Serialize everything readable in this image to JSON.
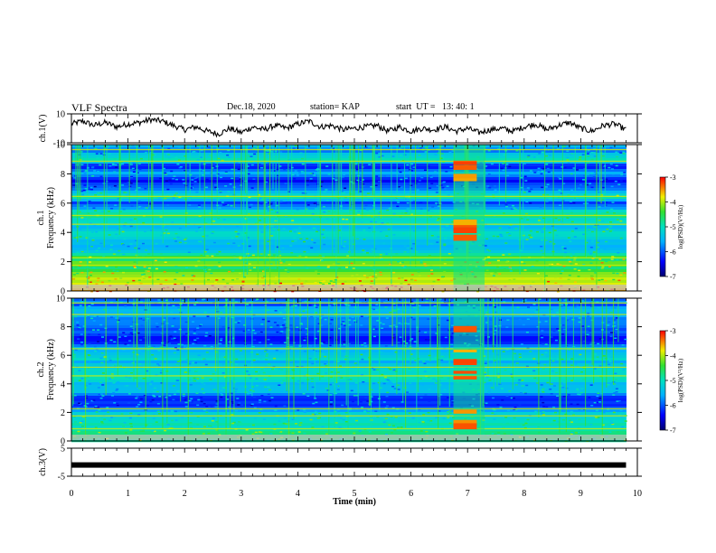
{
  "header": {
    "title": "VLF Spectra",
    "date": "Dec.18, 2020",
    "station": "station= KAP",
    "start": "start  UT =   13: 40: 1"
  },
  "chart_data": [
    {
      "type": "line",
      "panel": "ch1-waveform",
      "ylabel": "ch.1(V)",
      "ylim": [
        -10,
        10
      ],
      "yticks": [
        "10",
        "-10"
      ],
      "x": [
        0.0,
        0.2,
        0.4,
        0.6,
        0.8,
        1.0,
        1.2,
        1.4,
        1.6,
        1.8,
        2.0,
        2.2,
        2.4,
        2.6,
        2.8,
        3.0,
        3.2,
        3.4,
        3.6,
        3.8,
        4.0,
        4.2,
        4.4,
        4.6,
        4.8,
        5.0,
        5.2,
        5.4,
        5.6,
        5.8,
        6.0,
        6.2,
        6.4,
        6.6,
        6.8,
        7.0,
        7.2,
        7.4,
        7.6,
        7.8,
        8.0,
        8.2,
        8.4,
        8.6,
        8.8,
        9.0,
        9.2,
        9.4,
        9.6,
        9.8
      ],
      "values": [
        3,
        5,
        2,
        4,
        1,
        3,
        4,
        6,
        5,
        2,
        -1,
        1,
        -2,
        -4,
        0,
        -3,
        1,
        -1,
        2,
        0,
        3,
        5,
        1,
        2,
        -1,
        0,
        1,
        2,
        -2,
        1,
        -2,
        0,
        -1,
        1,
        -2,
        0,
        -3,
        -1,
        0,
        -2,
        1,
        3,
        -1,
        2,
        4,
        0,
        -2,
        2,
        3,
        -1
      ]
    },
    {
      "type": "heatmap",
      "panel": "ch1-spectrogram",
      "ylabel": "ch.1\nFrequency (kHz)",
      "xlim": [
        0,
        10
      ],
      "ylim": [
        0,
        10
      ],
      "yticks": [
        "0",
        "2",
        "4",
        "6",
        "8",
        "10"
      ],
      "colorbar": {
        "label": "log(PSD)(V²/Hz)",
        "range": [
          -7,
          -3
        ],
        "ticks": [
          "-3",
          "-4",
          "-5",
          "-6",
          "-7"
        ]
      },
      "burst": {
        "t_start": 6.75,
        "t_end": 7.3
      },
      "profile": [
        {
          "f": 0.5,
          "level": -3.8
        },
        {
          "f": 1.0,
          "level": -4.2
        },
        {
          "f": 1.5,
          "level": -4.6
        },
        {
          "f": 2.0,
          "level": -4.3
        },
        {
          "f": 2.5,
          "level": -4.9
        },
        {
          "f": 3.0,
          "level": -5.6
        },
        {
          "f": 3.5,
          "level": -5.2
        },
        {
          "f": 4.0,
          "level": -5.1
        },
        {
          "f": 4.5,
          "level": -5.4
        },
        {
          "f": 5.0,
          "level": -4.9
        },
        {
          "f": 5.5,
          "level": -5.2
        },
        {
          "f": 6.0,
          "level": -6.2
        },
        {
          "f": 6.5,
          "level": -4.8
        },
        {
          "f": 7.0,
          "level": -6.1
        },
        {
          "f": 7.5,
          "level": -6.4
        },
        {
          "f": 8.0,
          "level": -5.7
        },
        {
          "f": 8.5,
          "level": -6.3
        },
        {
          "f": 9.0,
          "level": -5.0
        },
        {
          "f": 9.5,
          "level": -5.8
        },
        {
          "f": 10.0,
          "level": -5.5
        }
      ]
    },
    {
      "type": "heatmap",
      "panel": "ch2-spectrogram",
      "ylabel": "ch.2\nFrequency (kHz)",
      "xlim": [
        0,
        10
      ],
      "ylim": [
        0,
        10
      ],
      "yticks": [
        "0",
        "2",
        "4",
        "6",
        "8",
        "10"
      ],
      "colorbar": {
        "label": "log(PSD)(V²/Hz)",
        "range": [
          -7,
          -3
        ],
        "ticks": [
          "-3",
          "-4",
          "-5",
          "-6",
          "-7"
        ]
      },
      "burst": {
        "t_start": 6.75,
        "t_end": 7.3
      },
      "profile": [
        {
          "f": 0.5,
          "level": -4.9
        },
        {
          "f": 1.0,
          "level": -5.0
        },
        {
          "f": 1.5,
          "level": -5.1
        },
        {
          "f": 2.0,
          "level": -5.2
        },
        {
          "f": 2.5,
          "level": -6.2
        },
        {
          "f": 3.0,
          "level": -6.3
        },
        {
          "f": 3.5,
          "level": -5.4
        },
        {
          "f": 4.0,
          "level": -5.6
        },
        {
          "f": 4.5,
          "level": -5.1
        },
        {
          "f": 5.0,
          "level": -5.3
        },
        {
          "f": 5.5,
          "level": -5.5
        },
        {
          "f": 6.0,
          "level": -5.0
        },
        {
          "f": 6.5,
          "level": -5.6
        },
        {
          "f": 7.0,
          "level": -6.2
        },
        {
          "f": 7.5,
          "level": -6.3
        },
        {
          "f": 8.0,
          "level": -5.8
        },
        {
          "f": 8.5,
          "level": -6.0
        },
        {
          "f": 9.0,
          "level": -5.4
        },
        {
          "f": 9.5,
          "level": -5.9
        },
        {
          "f": 10.0,
          "level": -5.7
        }
      ]
    },
    {
      "type": "line",
      "panel": "ch3-waveform",
      "ylabel": "ch.3(V)",
      "ylim": [
        -5,
        5
      ],
      "yticks": [
        "5",
        "-5"
      ],
      "x": [
        0,
        9.8
      ],
      "values": [
        -1,
        -1
      ]
    }
  ],
  "xaxis": {
    "label": "Time (min)",
    "ticks": [
      "0",
      "1",
      "2",
      "3",
      "4",
      "5",
      "6",
      "7",
      "8",
      "9",
      "10"
    ]
  }
}
